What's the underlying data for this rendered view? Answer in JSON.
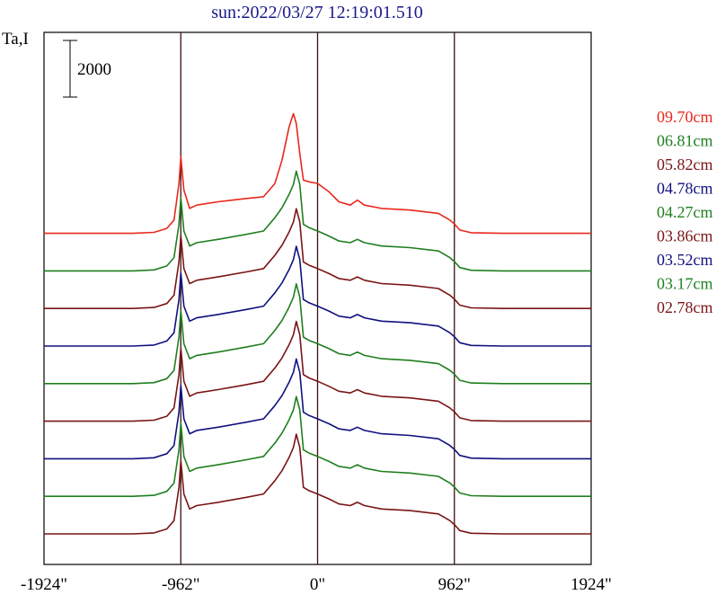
{
  "chart_data": {
    "type": "line",
    "title": "sun:2022/03/27 12:19:01.510",
    "ylabel": "Ta,I",
    "scale_bar_label": "2000",
    "scale_bar_value": 2000,
    "xlim": [
      -1924,
      1924
    ],
    "x_ticks": [
      {
        "value": -1924,
        "label": "-1924\""
      },
      {
        "value": -962,
        "label": "-962\""
      },
      {
        "value": 0,
        "label": "0\""
      },
      {
        "value": 962,
        "label": "962\""
      },
      {
        "value": 1924,
        "label": "1924\""
      }
    ],
    "reference_lines": [
      -962,
      0,
      962
    ],
    "legend_position": "right",
    "series": [
      {
        "name": "09.70cm",
        "color": "#e8281e",
        "baseline": 8
      },
      {
        "name": "06.81cm",
        "color": "#1f7f1f",
        "baseline": 7
      },
      {
        "name": "05.82cm",
        "color": "#7a1416",
        "baseline": 6
      },
      {
        "name": "04.78cm",
        "color": "#10107f",
        "baseline": 5
      },
      {
        "name": "04.27cm",
        "color": "#1f7f1f",
        "baseline": 4
      },
      {
        "name": "03.86cm",
        "color": "#7a1416",
        "baseline": 3
      },
      {
        "name": "03.52cm",
        "color": "#10107f",
        "baseline": 2
      },
      {
        "name": "03.17cm",
        "color": "#1f7f1f",
        "baseline": 1
      },
      {
        "name": "02.78cm",
        "color": "#7a1416",
        "baseline": 0
      }
    ],
    "profile_shape": [
      [
        -1924,
        0.0
      ],
      [
        -1300,
        0.0
      ],
      [
        -1150,
        0.03
      ],
      [
        -1060,
        0.15
      ],
      [
        -1010,
        0.4
      ],
      [
        -975,
        1.4
      ],
      [
        -962,
        2.2
      ],
      [
        -940,
        1.2
      ],
      [
        -900,
        0.75
      ],
      [
        -850,
        0.85
      ],
      [
        -700,
        0.95
      ],
      [
        -500,
        1.1
      ],
      [
        -380,
        1.2
      ],
      [
        -300,
        1.6
      ],
      [
        -250,
        1.9
      ],
      [
        -200,
        2.3
      ],
      [
        -170,
        2.6
      ],
      [
        -150,
        3.0
      ],
      [
        -125,
        2.6
      ],
      [
        -100,
        1.4
      ],
      [
        -60,
        1.3
      ],
      [
        0,
        1.2
      ],
      [
        80,
        1.05
      ],
      [
        150,
        0.9
      ],
      [
        230,
        0.85
      ],
      [
        280,
        0.95
      ],
      [
        330,
        0.85
      ],
      [
        450,
        0.75
      ],
      [
        650,
        0.7
      ],
      [
        850,
        0.6
      ],
      [
        930,
        0.4
      ],
      [
        962,
        0.28
      ],
      [
        1000,
        0.1
      ],
      [
        1080,
        0.02
      ],
      [
        1300,
        0.0
      ],
      [
        1924,
        0.0
      ]
    ],
    "profile_shape_top": [
      [
        -1924,
        0.0
      ],
      [
        -1300,
        0.0
      ],
      [
        -1150,
        0.03
      ],
      [
        -1060,
        0.15
      ],
      [
        -1010,
        0.4
      ],
      [
        -975,
        1.5
      ],
      [
        -962,
        2.3
      ],
      [
        -940,
        1.3
      ],
      [
        -900,
        0.75
      ],
      [
        -850,
        0.85
      ],
      [
        -700,
        0.95
      ],
      [
        -500,
        1.05
      ],
      [
        -380,
        1.1
      ],
      [
        -300,
        1.5
      ],
      [
        -250,
        2.2
      ],
      [
        -200,
        3.2
      ],
      [
        -170,
        3.6
      ],
      [
        -150,
        3.3
      ],
      [
        -125,
        2.4
      ],
      [
        -100,
        1.6
      ],
      [
        -60,
        1.55
      ],
      [
        0,
        1.5
      ],
      [
        80,
        1.25
      ],
      [
        150,
        0.95
      ],
      [
        230,
        0.85
      ],
      [
        280,
        1.0
      ],
      [
        330,
        0.85
      ],
      [
        450,
        0.75
      ],
      [
        650,
        0.7
      ],
      [
        850,
        0.6
      ],
      [
        930,
        0.4
      ],
      [
        962,
        0.28
      ],
      [
        1000,
        0.1
      ],
      [
        1080,
        0.02
      ],
      [
        1300,
        0.0
      ],
      [
        1924,
        0.0
      ]
    ]
  }
}
